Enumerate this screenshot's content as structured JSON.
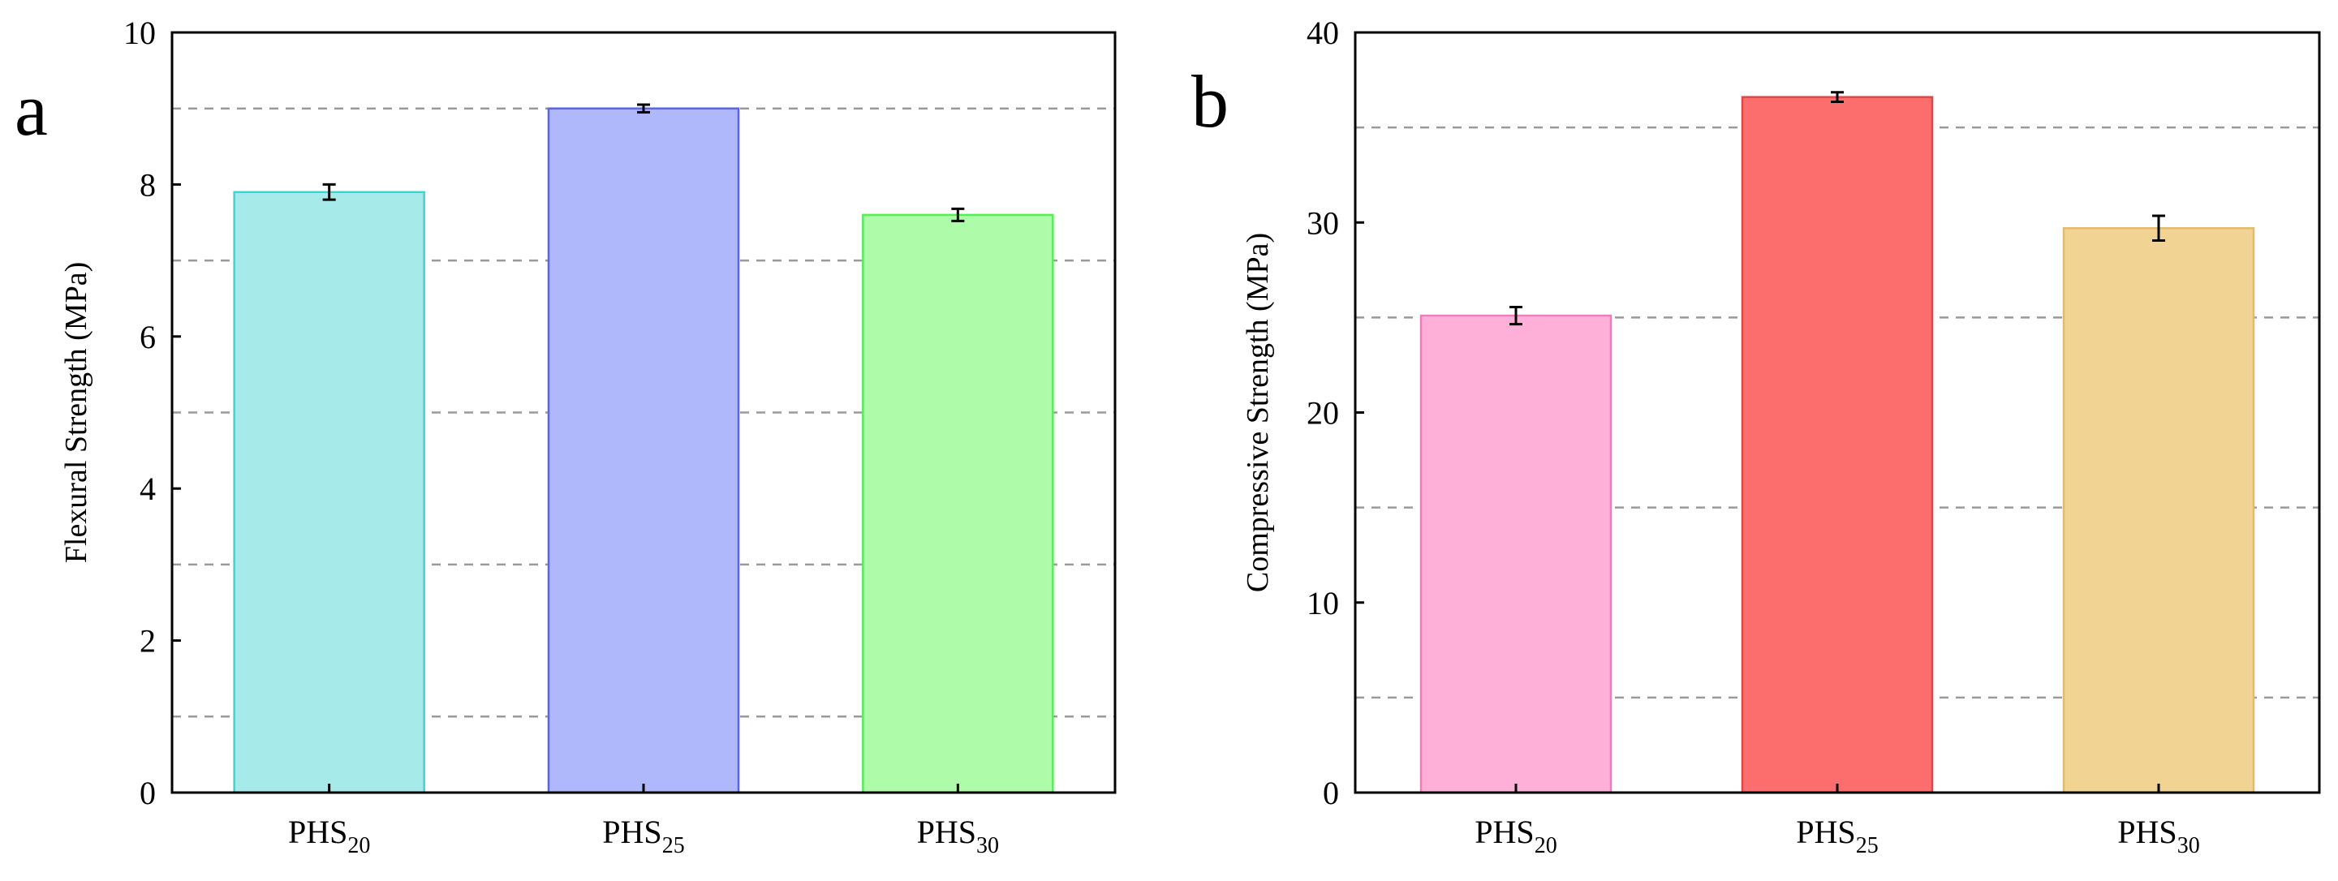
{
  "chart_data": [
    {
      "type": "bar",
      "panel_label": "a",
      "title": "",
      "xlabel": "",
      "ylabel": "Flexural Strength (MPa)",
      "ylim": [
        0,
        10
      ],
      "y_ticks": [
        0,
        2,
        4,
        6,
        8,
        10
      ],
      "grid_values": [
        1,
        3,
        5,
        7,
        9
      ],
      "grid": true,
      "categories": [
        {
          "base": "PHS",
          "sub": "20"
        },
        {
          "base": "PHS",
          "sub": "25"
        },
        {
          "base": "PHS",
          "sub": "30"
        }
      ],
      "values": [
        7.9,
        9.0,
        7.6
      ],
      "errors": [
        0.1,
        0.05,
        0.08
      ],
      "colors": [
        {
          "fill": "#a6eaea",
          "stroke": "#3fd3d3"
        },
        {
          "fill": "#b0b8fc",
          "stroke": "#5a64e8"
        },
        {
          "fill": "#aefcaa",
          "stroke": "#56ec5a"
        }
      ]
    },
    {
      "type": "bar",
      "panel_label": "b",
      "title": "",
      "xlabel": "",
      "ylabel": "Compressive Strength (MPa)",
      "ylim": [
        0,
        40
      ],
      "y_ticks": [
        0,
        10,
        20,
        30,
        40
      ],
      "grid_values": [
        5,
        15,
        25,
        35
      ],
      "grid": true,
      "categories": [
        {
          "base": "PHS",
          "sub": "20"
        },
        {
          "base": "PHS",
          "sub": "25"
        },
        {
          "base": "PHS",
          "sub": "30"
        }
      ],
      "values": [
        25.1,
        36.6,
        29.7
      ],
      "errors": [
        0.45,
        0.25,
        0.65
      ],
      "colors": [
        {
          "fill": "#ffb0d8",
          "stroke": "#f07cba"
        },
        {
          "fill": "#fc6e6e",
          "stroke": "#e34444"
        },
        {
          "fill": "#f1d394",
          "stroke": "#e2bc6c"
        }
      ]
    }
  ]
}
